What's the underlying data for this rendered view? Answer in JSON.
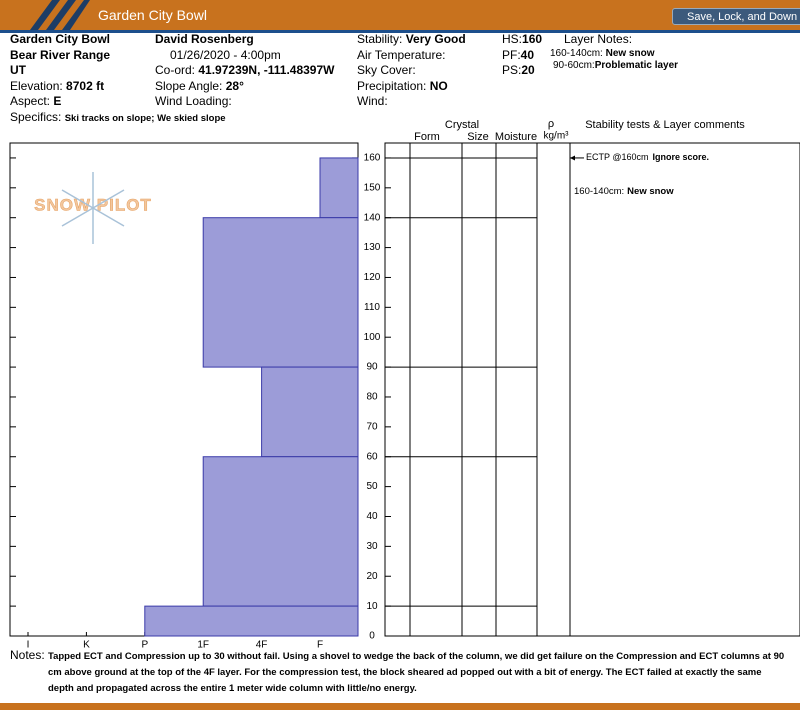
{
  "app": {
    "title": "Garden City Bowl",
    "button": "Save, Lock, and Down"
  },
  "header": {
    "col1": [
      {
        "value": "Garden City Bowl"
      },
      {
        "value": "Bear River Range"
      },
      {
        "value": "UT"
      },
      {
        "label": "Elevation:",
        "value": "8702 ft"
      },
      {
        "label": "Aspect:",
        "value": "E"
      }
    ],
    "specifics": {
      "label": "Specifics:",
      "value": "Ski tracks on slope; We skied slope"
    },
    "col2": [
      {
        "value": "David Rosenberg"
      },
      {
        "value": "01/26/2020 - 4:00pm"
      },
      {
        "label": "Co-ord:",
        "value": "41.97239N, -111.48397W"
      },
      {
        "label": "Slope Angle:",
        "value": "28°"
      },
      {
        "label": "Wind Loading:",
        "value": ""
      }
    ],
    "col3": [
      {
        "label": "Stability:",
        "value": "Very Good"
      },
      {
        "label": "Air Temperature:",
        "value": ""
      },
      {
        "label": "Sky Cover:",
        "value": ""
      },
      {
        "label": "Precipitation:",
        "value": "NO"
      },
      {
        "label": "Wind:",
        "value": ""
      }
    ],
    "col4": [
      {
        "label": "HS:",
        "value": "160"
      },
      {
        "label": "PF:",
        "value": "40"
      },
      {
        "label": "PS:",
        "value": "20"
      }
    ],
    "layer_notes": {
      "title": "Layer Notes:",
      "items": [
        {
          "range": "160-140cm:",
          "note": "New snow"
        },
        {
          "range": "90-60cm:",
          "note": "Problematic layer"
        }
      ]
    }
  },
  "columns": {
    "crystal": "Crystal",
    "form": "Form",
    "size": "Size",
    "moisture": "Moisture",
    "rho": "ρ",
    "density": "kg/m³",
    "comments": "Stability tests & Layer comments"
  },
  "watermark": "SNOW PILOT",
  "profile": {
    "ylim": [
      0,
      165
    ],
    "yticks": [
      0,
      10,
      20,
      30,
      40,
      50,
      60,
      70,
      80,
      90,
      100,
      110,
      120,
      130,
      140,
      150,
      160
    ],
    "hardness_scale": [
      "I",
      "K",
      "P",
      "1F",
      "4F",
      "F"
    ],
    "color": "#9c9cd8",
    "layers": [
      {
        "top": 160,
        "bottom": 140,
        "hardness": "F"
      },
      {
        "top": 140,
        "bottom": 90,
        "hardness": "1F"
      },
      {
        "top": 90,
        "bottom": 60,
        "hardness": "4F"
      },
      {
        "top": 60,
        "bottom": 10,
        "hardness": "1F"
      },
      {
        "top": 10,
        "bottom": 0,
        "hardness": "P"
      }
    ]
  },
  "tests": [
    {
      "label": "ECTP @160cm",
      "comment": "Ignore score."
    }
  ],
  "layer_comments": [
    {
      "range": "160-140cm:",
      "note": "New snow"
    }
  ],
  "notes": {
    "label": "Notes:",
    "text": "Tapped ECT and Compression up to 30 without fail. Using a shovel to wedge the back of the column, we did get failure on the Compression and ECT columns at 90 cm above ground at the top of the 4F layer. For the compression test, the block sheared ad popped out with a bit of energy. The ECT failed at exactly the same depth and propagated across the entire 1 meter wide column with little/no energy."
  }
}
